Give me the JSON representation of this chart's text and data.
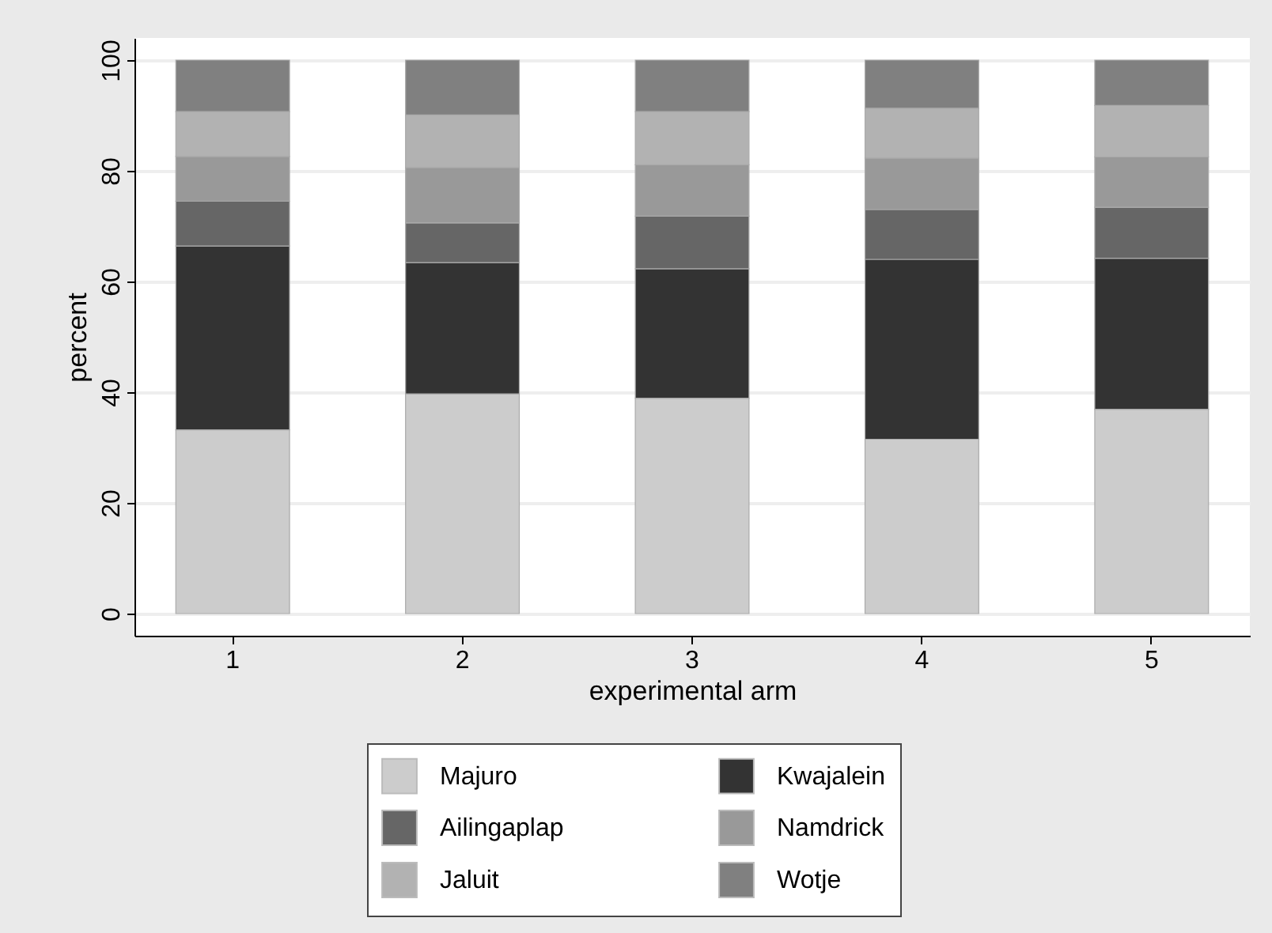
{
  "chart_data": {
    "type": "bar",
    "stacked": true,
    "xlabel": "experimental arm",
    "ylabel": "percent",
    "categories": [
      "1",
      "2",
      "3",
      "4",
      "5"
    ],
    "series": [
      {
        "name": "Majuro",
        "color": "#cccccc",
        "values": [
          33.2,
          39.7,
          38.9,
          31.5,
          36.9
        ]
      },
      {
        "name": "Kwajalein",
        "color": "#333333",
        "values": [
          33.2,
          23.7,
          23.4,
          32.5,
          27.3
        ]
      },
      {
        "name": "Ailingaplap",
        "color": "#666666",
        "values": [
          8.1,
          7.2,
          9.5,
          9.0,
          9.2
        ]
      },
      {
        "name": "Namdrick",
        "color": "#999999",
        "values": [
          8.1,
          10.0,
          9.3,
          9.3,
          9.1
        ]
      },
      {
        "name": "Jaluit",
        "color": "#b2b2b2",
        "values": [
          8.1,
          9.5,
          9.6,
          9.0,
          9.3
        ]
      },
      {
        "name": "Wotje",
        "color": "#808080",
        "values": [
          9.3,
          9.9,
          9.3,
          8.7,
          8.2
        ]
      }
    ],
    "ylim": [
      -4,
      104
    ],
    "yticks": [
      0,
      20,
      40,
      60,
      80,
      100
    ],
    "grid": "y",
    "legend": "bottom"
  }
}
